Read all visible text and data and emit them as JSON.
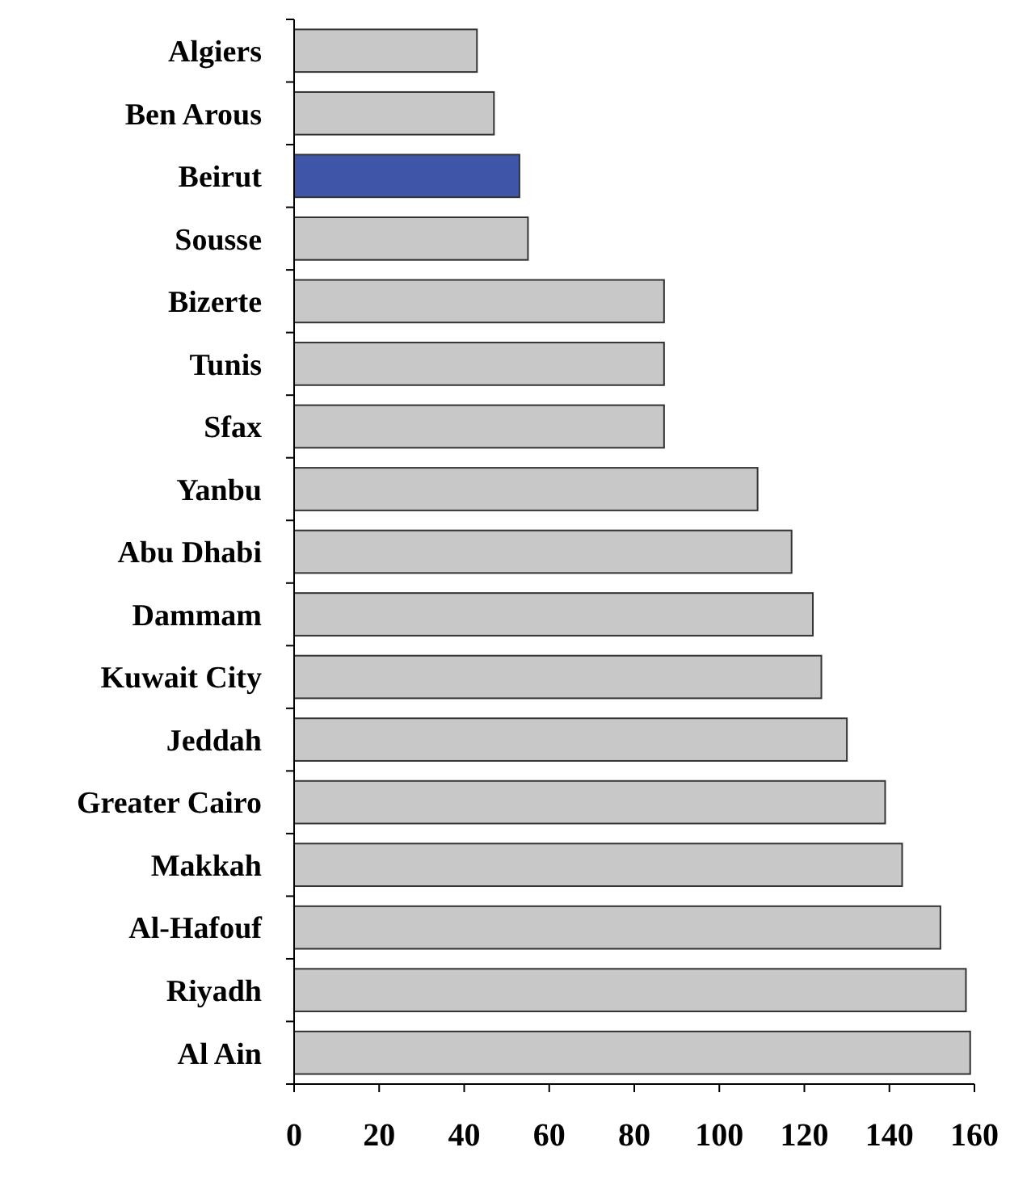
{
  "chart_data": {
    "type": "bar",
    "orientation": "horizontal",
    "categories": [
      "Algiers",
      "Ben Arous",
      "Beirut",
      "Sousse",
      "Bizerte",
      "Tunis",
      "Sfax",
      "Yanbu",
      "Abu Dhabi",
      "Dammam",
      "Kuwait City",
      "Jeddah",
      "Greater Cairo",
      "Makkah",
      "Al-Hafouf",
      "Riyadh",
      "Al Ain"
    ],
    "values": [
      43,
      47,
      53,
      55,
      87,
      87,
      87,
      109,
      117,
      122,
      124,
      130,
      139,
      143,
      152,
      158,
      159
    ],
    "colors": [
      "#c8c8c8",
      "#c8c8c8",
      "#3f55a8",
      "#c8c8c8",
      "#c8c8c8",
      "#c8c8c8",
      "#c8c8c8",
      "#c8c8c8",
      "#c8c8c8",
      "#c8c8c8",
      "#c8c8c8",
      "#c8c8c8",
      "#c8c8c8",
      "#c8c8c8",
      "#c8c8c8",
      "#c8c8c8",
      "#c8c8c8"
    ],
    "xlim": [
      0,
      160
    ],
    "xticks": [
      0,
      20,
      40,
      60,
      80,
      100,
      120,
      140,
      160
    ]
  }
}
